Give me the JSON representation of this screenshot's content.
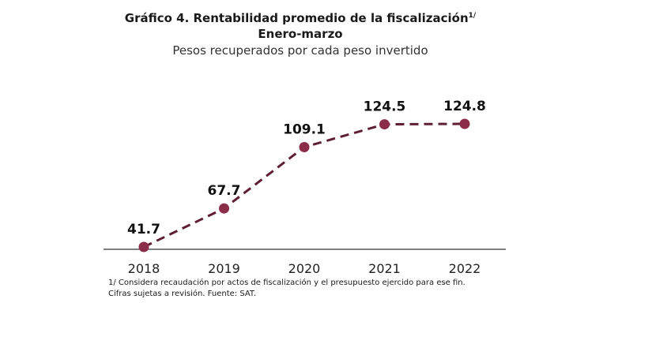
{
  "chart_data": {
    "type": "line",
    "title": "Gráfico 4. Rentabilidad promedio de la fiscalización",
    "title_footnote_mark": "1/",
    "subtitle": "Enero-marzo",
    "subtitle2": "Pesos recuperados por cada peso invertido",
    "categories": [
      "2018",
      "2019",
      "2020",
      "2021",
      "2022"
    ],
    "values": [
      41.7,
      67.7,
      109.1,
      124.5,
      124.8
    ],
    "data_labels": [
      "41.7",
      "67.7",
      "109.1",
      "124.5",
      "124.8"
    ],
    "line_style": "dashed",
    "line_color": "#5e1f33",
    "marker_color": "#8b2c48",
    "grid": false,
    "legend": "none",
    "notes": [
      "1/ Considera recaudación por actos de fiscalización y el presupuesto ejercido para ese fin.",
      "Cifras sujetas a revisión. Fuente: SAT."
    ]
  }
}
